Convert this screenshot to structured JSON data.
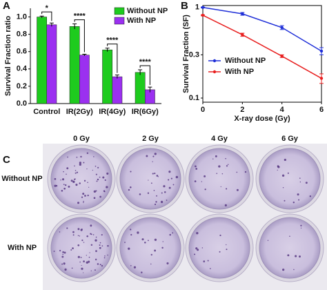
{
  "chart_data": [
    {
      "type": "bar",
      "panel": "A",
      "y_label": "Survival Fraction ratio",
      "categories": [
        "Control",
        "IR(2Gy)",
        "IR(4Gy)",
        "IR(6Gy)"
      ],
      "series": [
        {
          "name": "Without NP",
          "color": "#1ecb1e",
          "values": [
            1.0,
            0.89,
            0.62,
            0.36
          ],
          "errors": [
            0.01,
            0.03,
            0.02,
            0.03
          ]
        },
        {
          "name": "With NP",
          "color": "#9b30f0",
          "values": [
            0.91,
            0.56,
            0.31,
            0.16
          ],
          "errors": [
            0.02,
            0.01,
            0.02,
            0.03
          ]
        }
      ],
      "significance": [
        "*",
        "****",
        "****",
        "****"
      ],
      "ylim": [
        0,
        1.1
      ],
      "yticks": [
        {
          "value": 0,
          "label": "0.0"
        },
        0.2,
        0.4,
        0.6,
        0.8,
        {
          "value": 1,
          "label": "1.0"
        }
      ],
      "legend": "upper right"
    },
    {
      "type": "line",
      "panel": "B",
      "y_label": "Survival Fraction (SF)",
      "x_label": "X-ray dose (Gy)",
      "x": [
        0,
        2,
        4,
        6
      ],
      "series": [
        {
          "name": "Without NP",
          "color": "#1f2fd8",
          "values": [
            1.0,
            0.85,
            0.6,
            0.33
          ],
          "errors": [
            0.01,
            0.03,
            0.03,
            0.03
          ]
        },
        {
          "name": "With NP",
          "color": "#e82020",
          "values": [
            0.82,
            0.5,
            0.29,
            0.165
          ],
          "errors": [
            0.01,
            0.02,
            0.01,
            0.02
          ]
        }
      ],
      "xlim": [
        0,
        6
      ],
      "xticks": [
        0,
        2,
        4,
        6
      ],
      "ylim": [
        0.09,
        1.05
      ],
      "yticks": [
        1,
        0.3,
        0.1
      ],
      "log_y": true,
      "legend": "center left"
    }
  ],
  "panel_c": {
    "label": "C",
    "columns": [
      "0 Gy",
      "2 Gy",
      "4 Gy",
      "6 Gy"
    ],
    "rows": [
      "Without NP",
      "With NP"
    ]
  }
}
